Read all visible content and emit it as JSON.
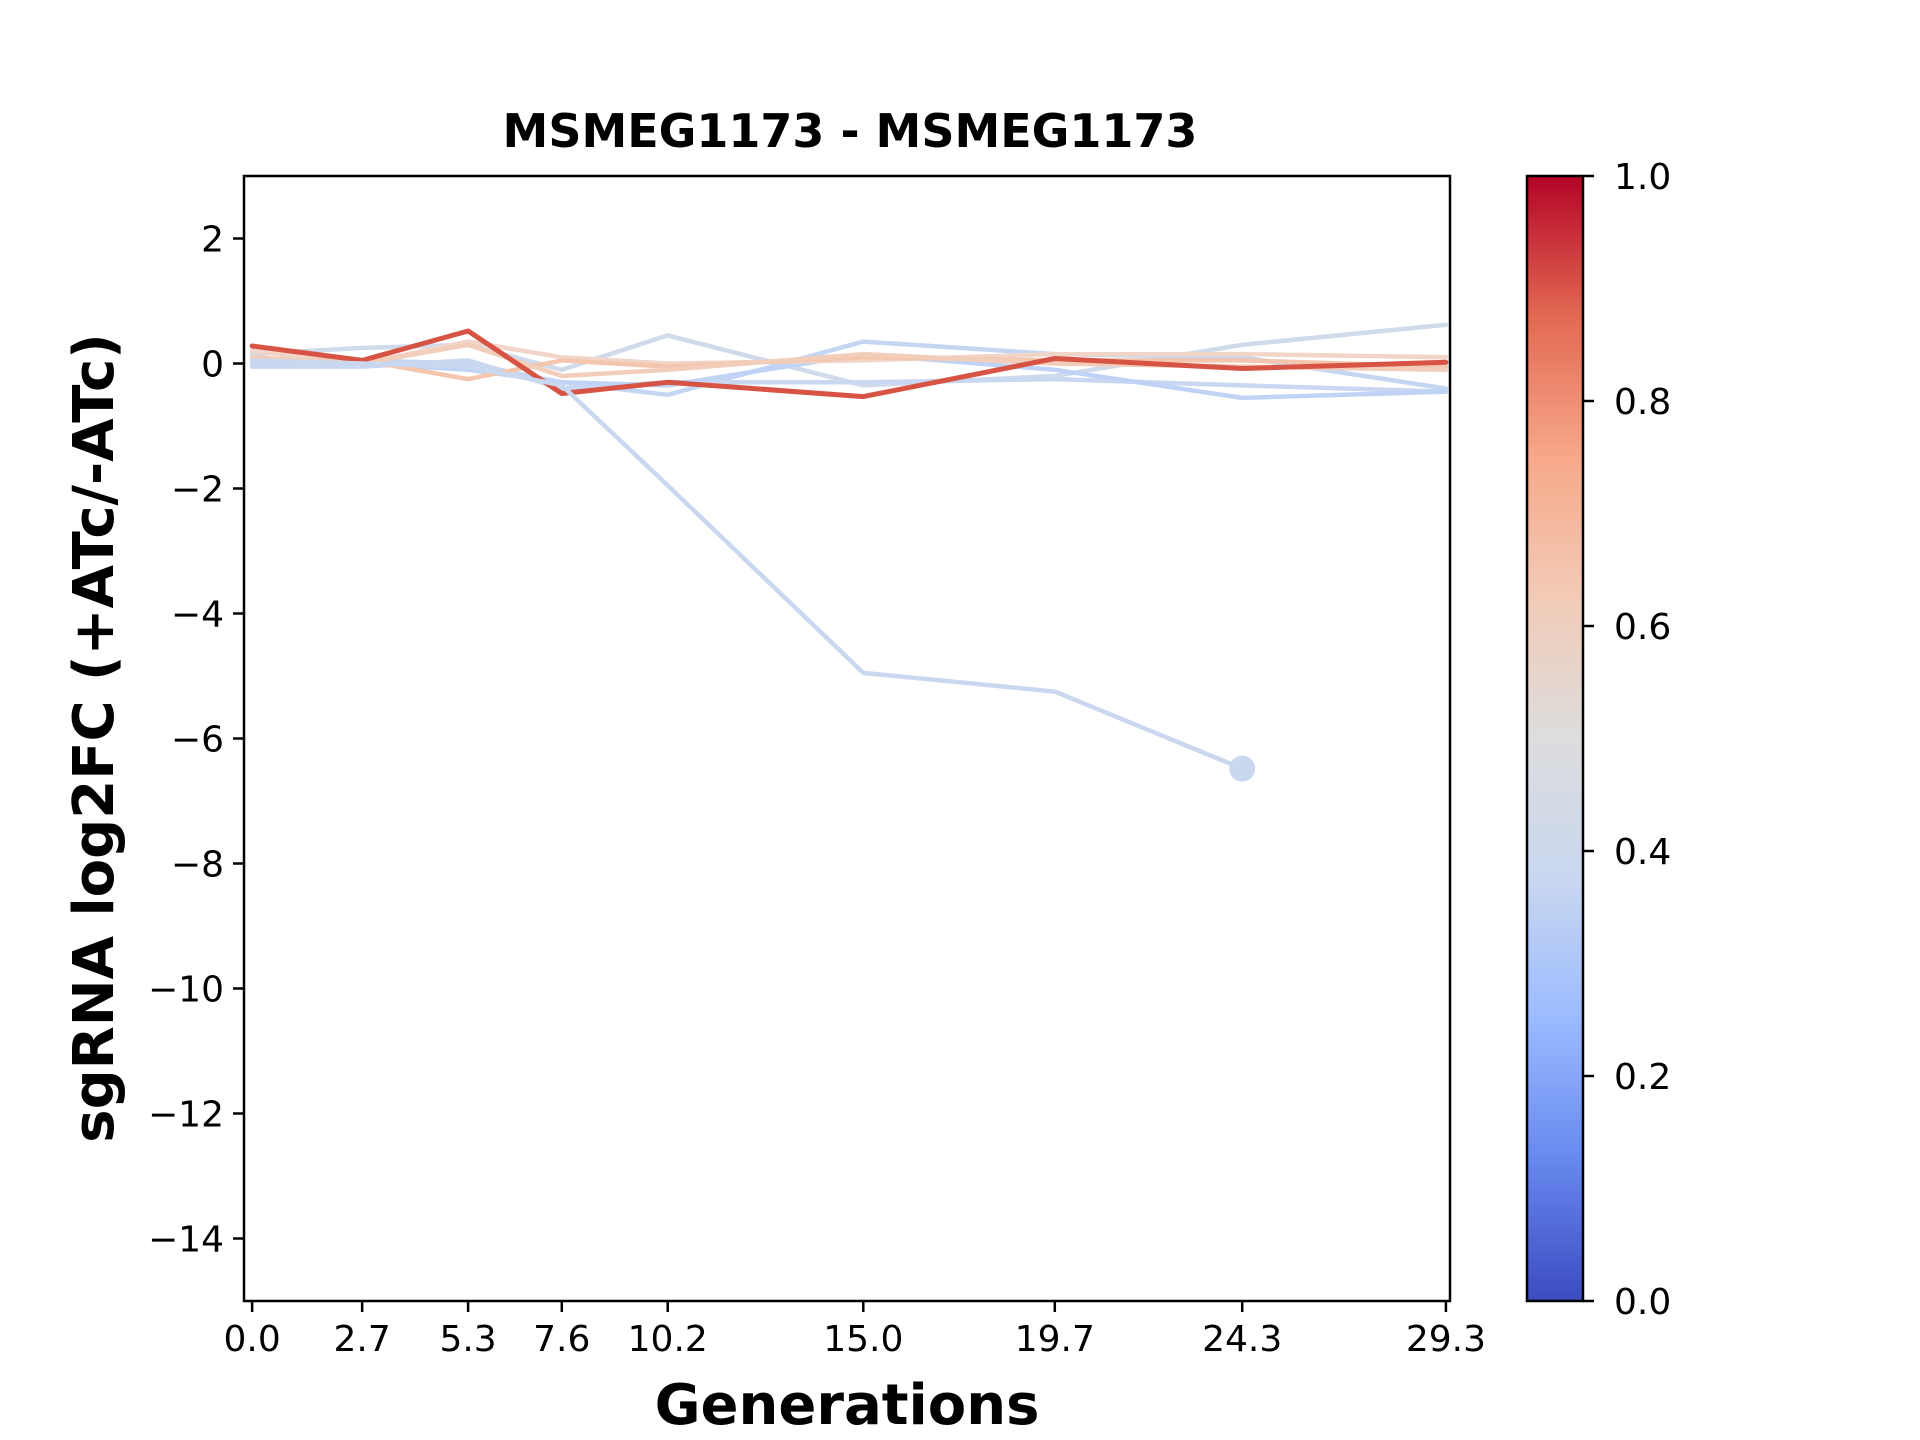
{
  "chart_data": {
    "type": "line",
    "title": "MSMEG1173 - MSMEG1173",
    "xlabel": "Generations",
    "ylabel": "sgRNA log2FC (+ATc/-ATc)",
    "x": [
      0.0,
      2.7,
      5.3,
      7.6,
      10.2,
      15.0,
      19.7,
      24.3,
      29.3
    ],
    "x_tick_labels": [
      "0.0",
      "2.7",
      "5.3",
      "7.6",
      "10.2",
      "15.0",
      "19.7",
      "24.3",
      "29.3"
    ],
    "xlim": [
      -0.2,
      29.4
    ],
    "ylim": [
      -15,
      3
    ],
    "y_ticks": [
      2,
      0,
      -2,
      -4,
      -6,
      -8,
      -10,
      -12,
      -14
    ],
    "y_tick_labels": [
      "2",
      "0",
      "−2",
      "−4",
      "−6",
      "−8",
      "−10",
      "−12",
      "−14"
    ],
    "grid": false,
    "series": [
      {
        "score": 0.45,
        "color": "#cfdaea",
        "values": [
          0.15,
          0.25,
          0.3,
          -0.1,
          0.45,
          -0.35,
          -0.2,
          0.3,
          0.62
        ]
      },
      {
        "score": 0.4,
        "color": "#c5d6f2",
        "values": [
          0.0,
          0.05,
          0.0,
          -0.3,
          -0.5,
          0.35,
          0.15,
          0.1,
          -0.4
        ]
      },
      {
        "score": 0.42,
        "color": "#c9d7f0",
        "values": [
          -0.05,
          -0.05,
          0.05,
          -0.4,
          -0.3,
          -0.3,
          -0.25,
          -0.35,
          -0.45
        ]
      },
      {
        "score": 0.38,
        "color": "#bfd3f6",
        "values": [
          0.1,
          0.0,
          -0.1,
          -0.3,
          -0.35,
          0.15,
          -0.1,
          -0.55,
          -0.45
        ]
      },
      {
        "score": 0.6,
        "color": "#f1d5c8",
        "values": [
          0.2,
          0.0,
          0.35,
          0.1,
          0.0,
          0.05,
          0.15,
          0.15,
          0.1
        ]
      },
      {
        "score": 0.65,
        "color": "#f4c6ae",
        "values": [
          0.05,
          0.05,
          -0.25,
          0.05,
          -0.05,
          0.1,
          0.05,
          0.05,
          -0.05
        ]
      },
      {
        "score": 0.62,
        "color": "#f2cdba",
        "values": [
          0.1,
          0.0,
          0.3,
          -0.2,
          -0.1,
          0.15,
          0.0,
          -0.05,
          -0.1
        ]
      },
      {
        "score": 0.92,
        "color": "#d75445",
        "values": [
          0.28,
          0.05,
          0.52,
          -0.48,
          -0.3,
          -0.53,
          0.08,
          -0.08,
          0.02
        ]
      },
      {
        "score": 0.43,
        "color": "#c9d8ef",
        "values": [
          0.05,
          0.0,
          -0.05,
          -0.35,
          -1.95,
          -4.95,
          -5.25,
          -6.48,
          null
        ],
        "end_marker": true
      }
    ],
    "colorbar": {
      "colormap": "coolwarm",
      "range": [
        0.0,
        1.0
      ],
      "ticks": [
        0.0,
        0.2,
        0.4,
        0.6,
        0.8,
        1.0
      ],
      "tick_labels": [
        "0.0",
        "0.2",
        "0.4",
        "0.6",
        "0.8",
        "1.0"
      ],
      "stops": [
        "#3b4cc0",
        "#6788ee",
        "#9abbff",
        "#c9d7f0",
        "#dddddd",
        "#f2cbb7",
        "#f7a889",
        "#e26952",
        "#b40426"
      ]
    }
  }
}
